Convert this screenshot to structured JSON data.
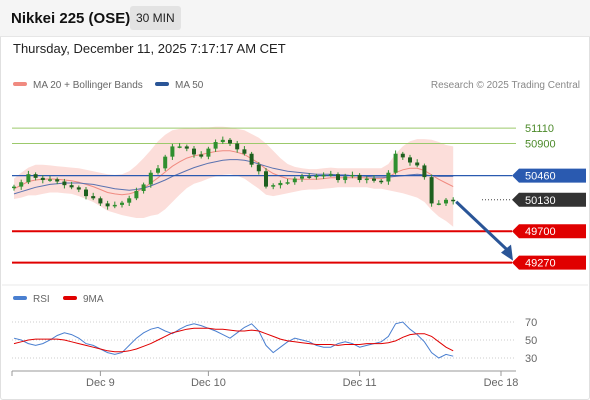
{
  "header": {
    "title": "Nikkei 225 (OSE)",
    "interval": "30 MIN"
  },
  "timestamp": "Thursday, December 11, 2025 7:17:17 AM CET",
  "legend": [
    {
      "label": "MA 20 + Bollinger Bands",
      "color": "#f08a80"
    },
    {
      "label": "MA 50",
      "color": "#2a5597"
    }
  ],
  "credit": "Research © 2025 Trading Central",
  "colors": {
    "support": "#e00000",
    "pivot": "#2a5ab0",
    "resistance": "#9cc96b",
    "last": "#333333",
    "candle": "#2f8f2f",
    "arrow": "#2a5597"
  },
  "chart_data": {
    "type": "candlestick",
    "price_range": [
      48950,
      51550
    ],
    "levels": [
      {
        "value": 51110,
        "label": "51110",
        "kind": "resistance"
      },
      {
        "value": 50900,
        "label": "50900",
        "kind": "resistance"
      },
      {
        "value": 50460,
        "label": "50460",
        "kind": "pivot"
      },
      {
        "value": 50130,
        "label": "50130",
        "kind": "last"
      },
      {
        "value": 49700,
        "label": "49700",
        "kind": "support"
      },
      {
        "value": 49270,
        "label": "49270",
        "kind": "support"
      }
    ],
    "forecast_arrow": {
      "from": 50130,
      "to": 49270
    },
    "close": [
      50310,
      50370,
      50480,
      50430,
      50400,
      50410,
      50380,
      50330,
      50300,
      50270,
      50180,
      50150,
      50080,
      50040,
      50060,
      50090,
      50150,
      50250,
      50340,
      50500,
      50560,
      50720,
      50860,
      50860,
      50830,
      50750,
      50720,
      50830,
      50920,
      50950,
      50900,
      50820,
      50760,
      50610,
      50520,
      50310,
      50330,
      50360,
      50370,
      50420,
      50450,
      50440,
      50460,
      50470,
      50480,
      50400,
      50450,
      50470,
      50400,
      50420,
      50390,
      50380,
      50500,
      50760,
      50710,
      50640,
      50600,
      50440,
      50080,
      50080,
      50130,
      50110
    ],
    "ma20": [
      50280,
      50330,
      50380,
      50400,
      50410,
      50415,
      50410,
      50400,
      50390,
      50370,
      50340,
      50310,
      50270,
      50230,
      50210,
      50200,
      50210,
      50240,
      50290,
      50360,
      50430,
      50510,
      50590,
      50650,
      50700,
      50730,
      50750,
      50770,
      50790,
      50800,
      50800,
      50780,
      50750,
      50690,
      50630,
      50550,
      50490,
      50450,
      50420,
      50410,
      50410,
      50410,
      50410,
      50420,
      50430,
      50430,
      50430,
      50430,
      50430,
      50430,
      50420,
      50420,
      50440,
      50500,
      50540,
      50560,
      50560,
      50530,
      50470,
      50410,
      50360,
      50310
    ],
    "bb_upper": [
      50420,
      50500,
      50570,
      50610,
      50610,
      50600,
      50590,
      50580,
      50570,
      50560,
      50540,
      50520,
      50500,
      50480,
      50470,
      50480,
      50520,
      50600,
      50700,
      50810,
      50930,
      51020,
      51080,
      51100,
      51110,
      51110,
      51120,
      51120,
      51130,
      51130,
      51120,
      51100,
      51080,
      51030,
      50980,
      50900,
      50800,
      50700,
      50620,
      50580,
      50560,
      50550,
      50550,
      50560,
      50570,
      50560,
      50560,
      50560,
      50560,
      50560,
      50560,
      50560,
      50620,
      50760,
      50860,
      50930,
      50960,
      50960,
      50950,
      50920,
      50880,
      50860
    ],
    "bb_lower": [
      50140,
      50160,
      50190,
      50190,
      50210,
      50230,
      50230,
      50220,
      50210,
      50180,
      50140,
      50100,
      50040,
      49980,
      49950,
      49920,
      49900,
      49880,
      49880,
      49910,
      49930,
      50000,
      50100,
      50200,
      50290,
      50350,
      50380,
      50420,
      50450,
      50470,
      50480,
      50460,
      50420,
      50350,
      50280,
      50200,
      50180,
      50200,
      50220,
      50240,
      50260,
      50270,
      50270,
      50280,
      50290,
      50300,
      50300,
      50300,
      50300,
      50300,
      50280,
      50280,
      50260,
      50240,
      50220,
      50190,
      50160,
      50100,
      49990,
      49900,
      49840,
      49760
    ],
    "ma50": [
      50210,
      50240,
      50270,
      50300,
      50320,
      50340,
      50350,
      50360,
      50360,
      50360,
      50350,
      50340,
      50320,
      50300,
      50280,
      50270,
      50260,
      50270,
      50290,
      50320,
      50360,
      50400,
      50450,
      50490,
      50530,
      50570,
      50600,
      50630,
      50650,
      50670,
      50680,
      50680,
      50670,
      50650,
      50620,
      50590,
      50560,
      50540,
      50520,
      50510,
      50500,
      50490,
      50480,
      50480,
      50480,
      50470,
      50470,
      50460,
      50460,
      50450,
      50440,
      50440,
      50440,
      50450,
      50460,
      50470,
      50480,
      50470,
      50460,
      50450,
      50450,
      50450
    ],
    "rsi": {
      "ticks": [
        "70",
        "50",
        "30"
      ],
      "labels": [
        "RSI",
        "9MA"
      ],
      "colors": [
        "#4a7fd0",
        "#e00000"
      ],
      "rsi": [
        52,
        50,
        46,
        44,
        46,
        50,
        55,
        58,
        56,
        52,
        46,
        44,
        40,
        36,
        34,
        36,
        44,
        52,
        58,
        62,
        64,
        60,
        57,
        62,
        66,
        68,
        66,
        63,
        60,
        56,
        52,
        58,
        64,
        68,
        60,
        44,
        36,
        42,
        48,
        52,
        50,
        48,
        44,
        42,
        42,
        46,
        48,
        46,
        42,
        44,
        46,
        48,
        54,
        68,
        70,
        62,
        56,
        48,
        36,
        30,
        34,
        32
      ],
      "ma9": [
        46,
        48,
        50,
        51,
        51,
        51,
        51,
        50,
        48,
        46,
        44,
        42,
        40,
        38,
        37,
        37,
        38,
        40,
        43,
        46,
        50,
        54,
        58,
        60,
        62,
        63,
        63,
        63,
        62,
        62,
        61,
        60,
        60,
        61,
        60,
        57,
        54,
        51,
        49,
        48,
        47,
        46,
        45,
        45,
        45,
        44,
        45,
        45,
        45,
        46,
        46,
        46,
        47,
        49,
        53,
        56,
        57,
        57,
        54,
        48,
        42,
        38
      ]
    },
    "x_axis": {
      "labels": [
        "Dec 9",
        "Dec 10",
        "Dec 11",
        "Dec 18"
      ],
      "label_index": [
        12,
        27,
        48,
        62
      ]
    }
  }
}
